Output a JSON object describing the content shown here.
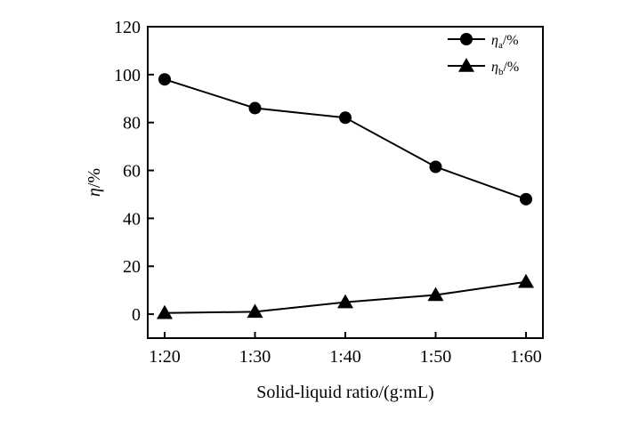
{
  "chart_data": {
    "type": "line",
    "title": "",
    "xlabel": "Solid-liquid ratio/(g:mL)",
    "ylabel": "η/%",
    "categories": [
      "1:20",
      "1:30",
      "1:40",
      "1:50",
      "1:60"
    ],
    "ylim": [
      -10,
      120
    ],
    "yticks": [
      0,
      20,
      40,
      60,
      80,
      100,
      120
    ],
    "grid": false,
    "legend_position": "top-right",
    "series": [
      {
        "name": "ηa/%",
        "legend_main": "η",
        "legend_sub": "a",
        "legend_suffix": "/%",
        "marker": "circle",
        "values": [
          98,
          86,
          82,
          61.5,
          48
        ]
      },
      {
        "name": "ηb/%",
        "legend_main": "η",
        "legend_sub": "b",
        "legend_suffix": "/%",
        "marker": "triangle",
        "values": [
          0.5,
          1,
          5,
          8,
          13.5
        ]
      }
    ]
  }
}
